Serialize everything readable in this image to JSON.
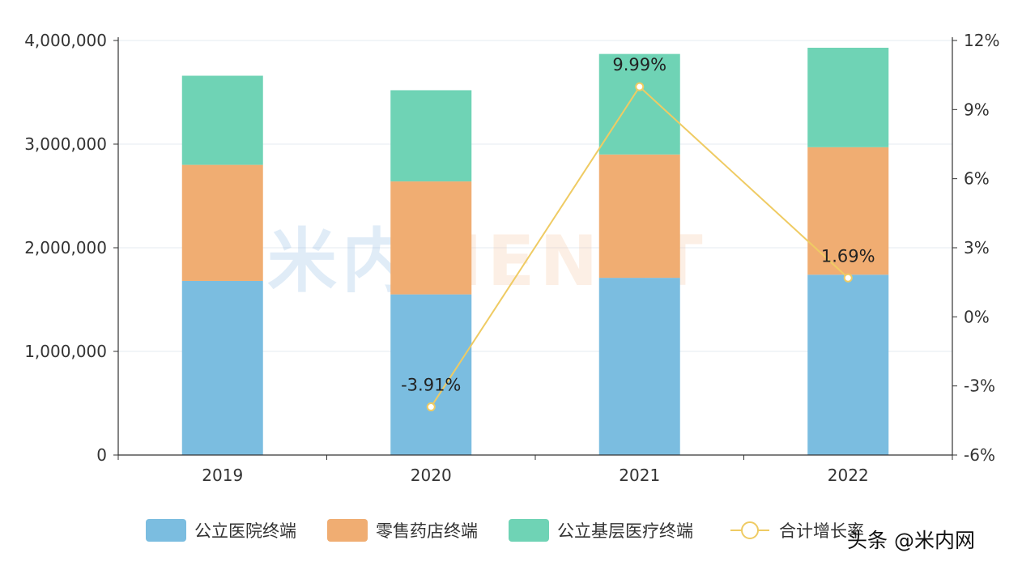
{
  "chart_data": {
    "type": "bar",
    "stacked": true,
    "categories": [
      "2019",
      "2020",
      "2021",
      "2022"
    ],
    "series": [
      {
        "name": "公立医院终端",
        "kind": "bar",
        "axis": "left",
        "color": "#7BBDE0",
        "values": [
          1680000,
          1550000,
          1710000,
          1740000
        ]
      },
      {
        "name": "零售药店终端",
        "kind": "bar",
        "axis": "left",
        "color": "#F0AD72",
        "values": [
          1120000,
          1090000,
          1190000,
          1230000
        ]
      },
      {
        "name": "公立基层医疗终端",
        "kind": "bar",
        "axis": "left",
        "color": "#6FD3B5",
        "values": [
          860000,
          880000,
          970000,
          960000
        ]
      },
      {
        "name": "合计增长率",
        "kind": "line",
        "axis": "right",
        "color": "#EFCB63",
        "values": [
          null,
          -3.91,
          9.99,
          1.69
        ],
        "labels": [
          "",
          "-3.91%",
          "9.99%",
          "1.69%"
        ]
      }
    ],
    "y_left": {
      "min": 0,
      "max": 4000000,
      "step": 1000000,
      "tick_labels": [
        "0",
        "1,000,000",
        "2,000,000",
        "3,000,000",
        "4,000,000"
      ]
    },
    "y_right": {
      "min": -6,
      "max": 12,
      "step": 3,
      "tick_labels": [
        "-6%",
        "-3%",
        "0%",
        "3%",
        "6%",
        "9%",
        "12%"
      ]
    },
    "grid": true,
    "legend_position": "bottom"
  },
  "watermark": {
    "part1": "米内",
    "part2": "MENET"
  },
  "credit": "头条 @米内网"
}
